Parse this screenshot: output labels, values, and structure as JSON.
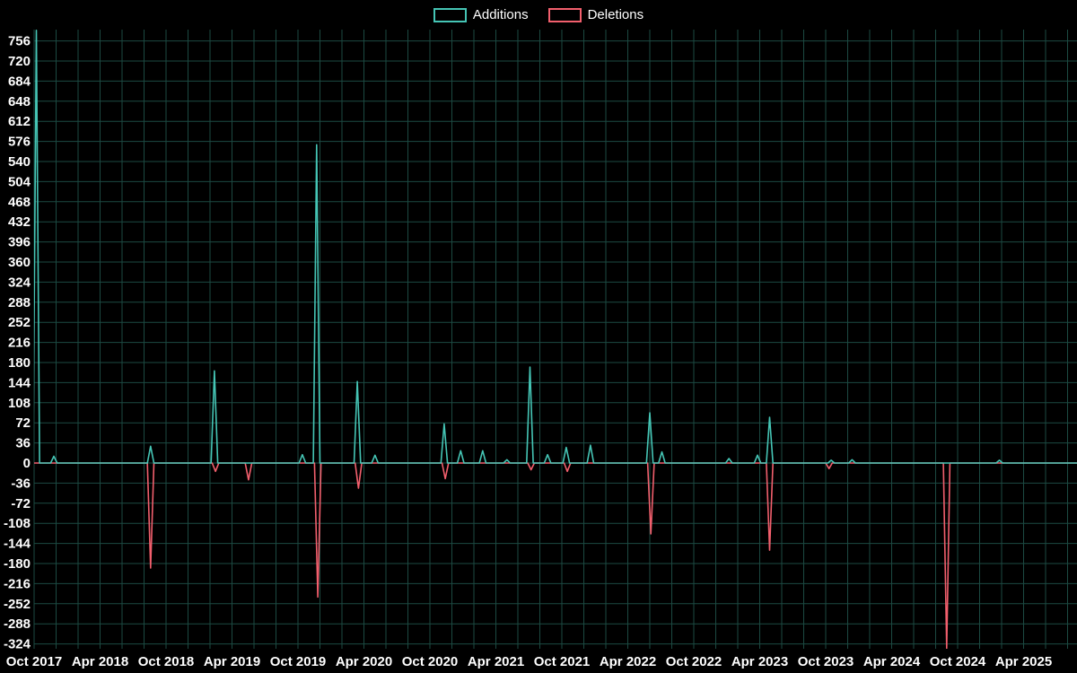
{
  "legend": {
    "additions_label": "Additions",
    "deletions_label": "Deletions"
  },
  "colors": {
    "background": "#000000",
    "text": "#ffffff",
    "grid": "#1c4a42",
    "additions": "#45c5b5",
    "deletions": "#f25f6d"
  },
  "chart_data": {
    "type": "line",
    "title": "",
    "xlabel": "",
    "ylabel": "",
    "legend_position": "top-center",
    "grid": true,
    "x_axis": {
      "tick_labels": [
        "Oct 2017",
        "Apr 2018",
        "Oct 2018",
        "Apr 2019",
        "Oct 2019",
        "Apr 2020",
        "Oct 2020",
        "Apr 2021",
        "Oct 2021",
        "Apr 2022",
        "Oct 2022",
        "Apr 2023",
        "Oct 2023",
        "Apr 2024",
        "Oct 2024",
        "Apr 2025"
      ],
      "months_per_tick": 6,
      "gridline_every_months": 2
    },
    "y_axis": {
      "min": -324,
      "max": 756,
      "step": 36,
      "tick_labels": [
        "756",
        "720",
        "684",
        "648",
        "612",
        "576",
        "540",
        "504",
        "468",
        "432",
        "396",
        "360",
        "324",
        "288",
        "252",
        "216",
        "180",
        "144",
        "108",
        "72",
        "36",
        "0",
        "-36",
        "-72",
        "-108",
        "-144",
        "-180",
        "-216",
        "-252",
        "-288",
        "-324"
      ]
    },
    "series": [
      {
        "name": "Additions",
        "color": "#45c5b5",
        "baseline": 0,
        "points": [
          {
            "m": 0.2,
            "v": 775
          },
          {
            "m": 1.8,
            "v": 12
          },
          {
            "m": 10.6,
            "v": 30
          },
          {
            "m": 16.4,
            "v": 165
          },
          {
            "m": 24.4,
            "v": 15
          },
          {
            "m": 25.7,
            "v": 570
          },
          {
            "m": 29.4,
            "v": 146
          },
          {
            "m": 31.0,
            "v": 14
          },
          {
            "m": 37.3,
            "v": 70
          },
          {
            "m": 38.8,
            "v": 22
          },
          {
            "m": 40.8,
            "v": 22
          },
          {
            "m": 43.0,
            "v": 6
          },
          {
            "m": 45.1,
            "v": 172
          },
          {
            "m": 46.7,
            "v": 15
          },
          {
            "m": 48.4,
            "v": 28
          },
          {
            "m": 50.6,
            "v": 32
          },
          {
            "m": 56.0,
            "v": 90
          },
          {
            "m": 57.1,
            "v": 20
          },
          {
            "m": 63.2,
            "v": 8
          },
          {
            "m": 65.8,
            "v": 14
          },
          {
            "m": 66.9,
            "v": 82
          },
          {
            "m": 72.5,
            "v": 5
          },
          {
            "m": 74.4,
            "v": 6
          },
          {
            "m": 87.8,
            "v": 5
          }
        ]
      },
      {
        "name": "Deletions",
        "color": "#f25f6d",
        "baseline": 0,
        "points": [
          {
            "m": 10.6,
            "v": -188
          },
          {
            "m": 16.5,
            "v": -15
          },
          {
            "m": 19.5,
            "v": -30
          },
          {
            "m": 25.8,
            "v": -240
          },
          {
            "m": 29.5,
            "v": -45
          },
          {
            "m": 37.4,
            "v": -28
          },
          {
            "m": 45.2,
            "v": -12
          },
          {
            "m": 48.5,
            "v": -15
          },
          {
            "m": 56.1,
            "v": -127
          },
          {
            "m": 66.9,
            "v": -156
          },
          {
            "m": 72.3,
            "v": -10
          },
          {
            "m": 83.0,
            "v": -332
          }
        ]
      }
    ],
    "notes": "m = months since Oct 2017; v = weekly lines changed; spikes sit on a zero baseline"
  }
}
